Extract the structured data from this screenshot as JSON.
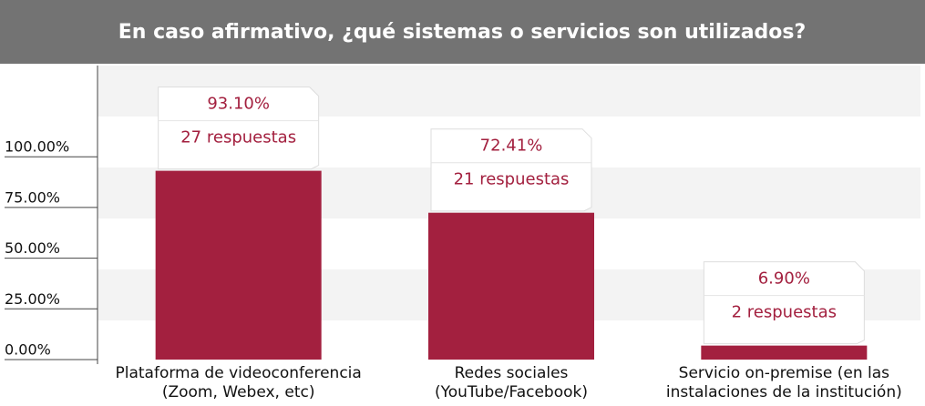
{
  "chart_data": {
    "type": "bar",
    "title": "En caso afirmativo, ¿qué sistemas o servicios son utilizados?",
    "categories": [
      "Plataforma de videoconferencia\n(Zoom, Webex, etc)",
      "Redes sociales\n(YouTube/Facebook)",
      "Servicio on-premise (en las\ninstalaciones de la institución)"
    ],
    "values": [
      93.1,
      72.41,
      6.9
    ],
    "value_labels": [
      "93.10%",
      "72.41%",
      "6.90%"
    ],
    "responses": {
      "values": [
        27,
        21,
        2
      ],
      "value_labels": [
        "27 respuestas",
        "21 respuestas",
        "2 respuestas"
      ]
    },
    "color": "#a3203f",
    "ylim": [
      0,
      145
    ],
    "yticks": [
      {
        "value": 0,
        "label": "0.00%"
      },
      {
        "value": 25,
        "label": "25.00%"
      },
      {
        "value": 50,
        "label": "50.00%"
      },
      {
        "value": 75,
        "label": "75.00%"
      },
      {
        "value": 100,
        "label": "100.00%"
      }
    ]
  }
}
